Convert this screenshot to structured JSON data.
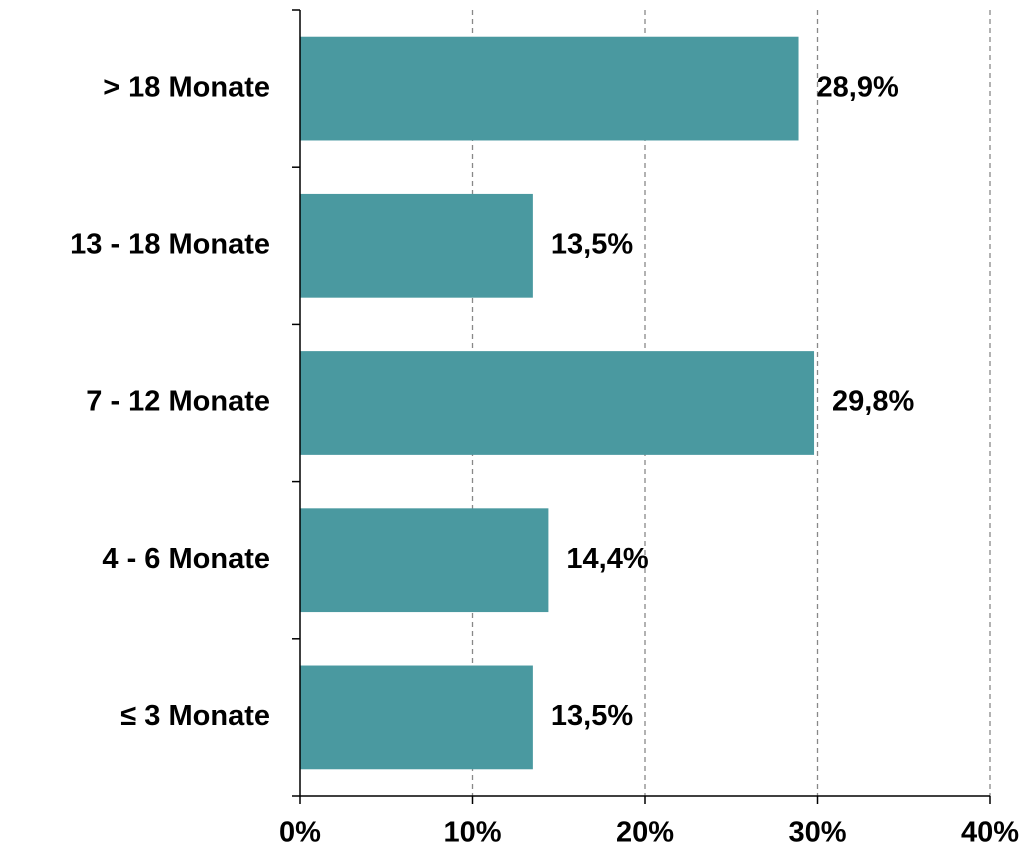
{
  "chart_data": {
    "type": "barh",
    "categories": [
      "> 18 Monate",
      "13 - 18 Monate",
      "7 - 12 Monate",
      "4 - 6 Monate",
      "≤ 3 Monate"
    ],
    "values": [
      28.9,
      13.5,
      29.8,
      14.4,
      13.5
    ],
    "value_labels": [
      "28,9%",
      "13,5%",
      "29,8%",
      "14,4%",
      "13,5%"
    ],
    "color": "#4a99a0",
    "xlim": [
      0,
      40
    ],
    "xticks": [
      {
        "value": 0,
        "label": "0%"
      },
      {
        "value": 10,
        "label": "10%"
      },
      {
        "value": 20,
        "label": "20%"
      },
      {
        "value": 30,
        "label": "30%"
      },
      {
        "value": 40,
        "label": "40%"
      }
    ],
    "grid": true
  }
}
